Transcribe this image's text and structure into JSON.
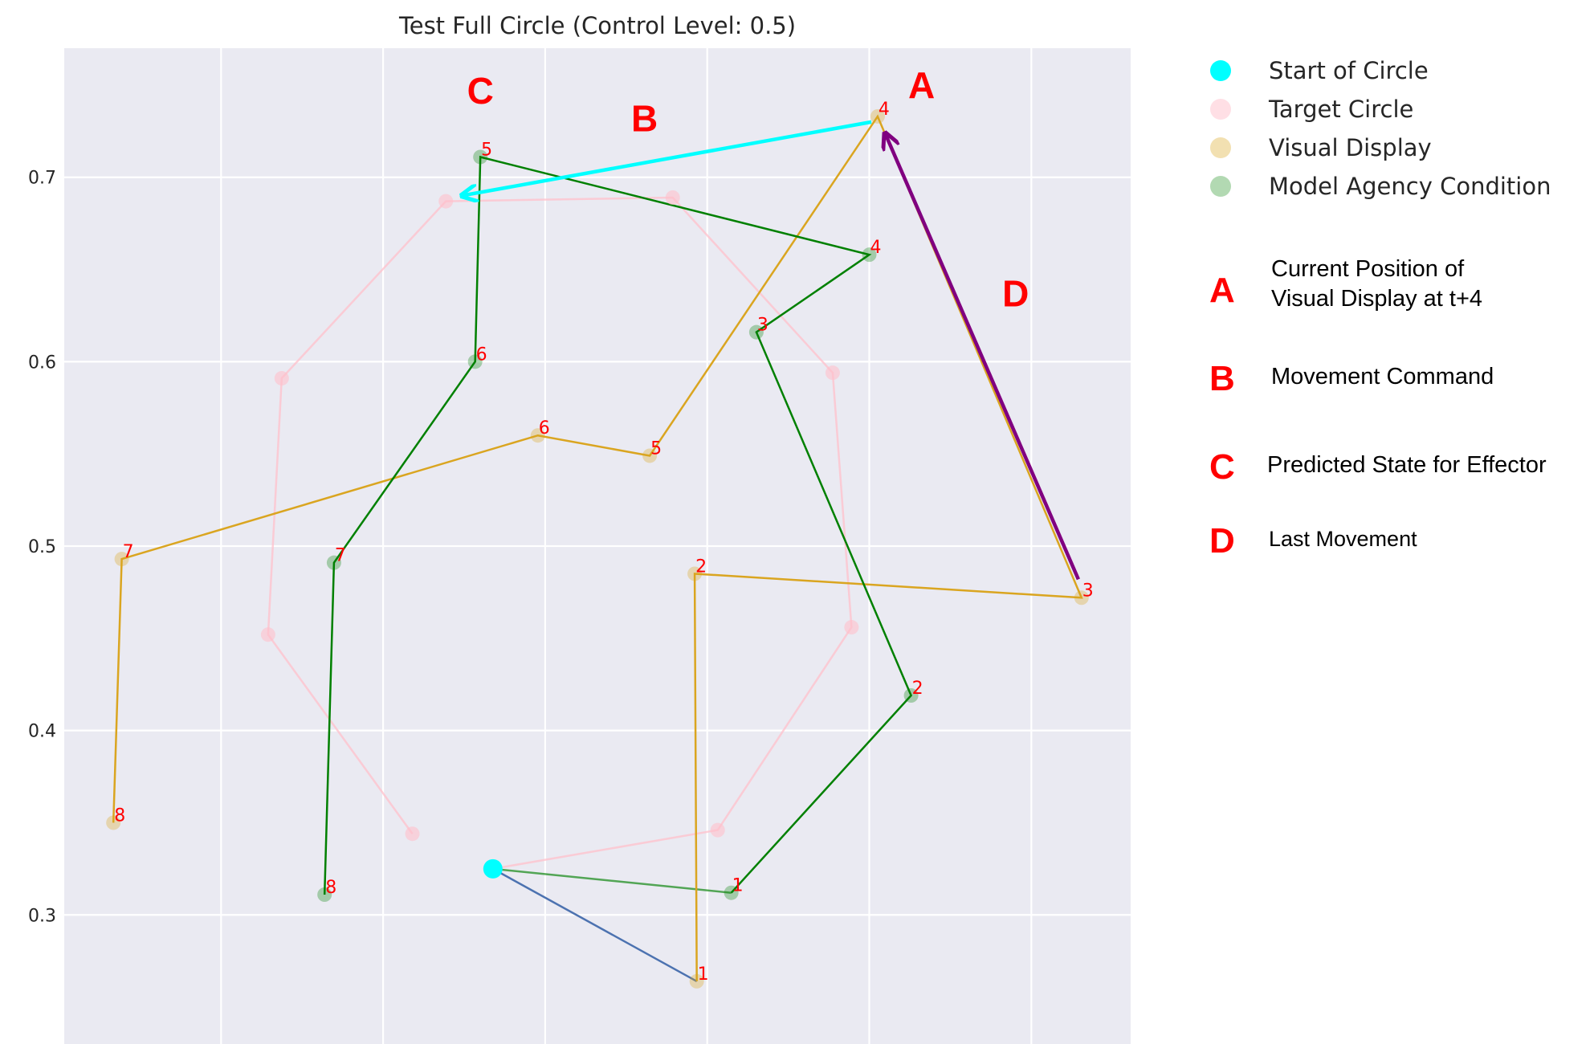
{
  "chart_data": {
    "type": "scatter",
    "title": "Test Full Circle (Control Level: 0.5)",
    "xlabel": "",
    "ylabel": "",
    "xlim": [
      -0.02,
      1.0
    ],
    "ylim": [
      0.23,
      0.77
    ],
    "y_ticks": [
      0.3,
      0.4,
      0.5,
      0.6,
      0.7
    ],
    "y_tick_labels": [
      "0.3",
      "0.4",
      "0.5",
      "0.6",
      "0.7"
    ],
    "x_grid": [
      0.13,
      0.285,
      0.44,
      0.595,
      0.75,
      0.905
    ],
    "grid": true,
    "legend_position": "outside-right",
    "colors": {
      "background": "#eaeaf2",
      "start": "#00ffff",
      "target": "#ffc0cb",
      "visual": "#daa520",
      "model": "#008000",
      "first_move": "#4c72b0",
      "command_arrow": "#00ffff",
      "last_move_arrow": "#800080",
      "point_label": "#ff0000"
    },
    "start_point": {
      "x": 0.39,
      "y": 0.325
    },
    "series": [
      {
        "name": "Target Circle",
        "points": [
          {
            "x": 0.605,
            "y": 0.346
          },
          {
            "x": 0.733,
            "y": 0.456
          },
          {
            "x": 0.715,
            "y": 0.594
          },
          {
            "x": 0.562,
            "y": 0.689
          },
          {
            "x": 0.345,
            "y": 0.687
          },
          {
            "x": 0.188,
            "y": 0.591
          },
          {
            "x": 0.175,
            "y": 0.452
          },
          {
            "x": 0.313,
            "y": 0.344
          }
        ]
      },
      {
        "name": "Visual Display",
        "points": [
          {
            "x": 0.585,
            "y": 0.264,
            "label": "1"
          },
          {
            "x": 0.583,
            "y": 0.485,
            "label": "2"
          },
          {
            "x": 0.953,
            "y": 0.472,
            "label": "3"
          },
          {
            "x": 0.758,
            "y": 0.733,
            "label": "4"
          },
          {
            "x": 0.54,
            "y": 0.549,
            "label": "5"
          },
          {
            "x": 0.433,
            "y": 0.56,
            "label": "6"
          },
          {
            "x": 0.035,
            "y": 0.493,
            "label": "7"
          },
          {
            "x": 0.027,
            "y": 0.35,
            "label": "8"
          }
        ]
      },
      {
        "name": "Model Agency Condition",
        "points": [
          {
            "x": 0.618,
            "y": 0.312,
            "label": "1"
          },
          {
            "x": 0.79,
            "y": 0.419,
            "label": "2"
          },
          {
            "x": 0.642,
            "y": 0.616,
            "label": "3"
          },
          {
            "x": 0.75,
            "y": 0.658,
            "label": "4"
          },
          {
            "x": 0.378,
            "y": 0.711,
            "label": "5"
          },
          {
            "x": 0.373,
            "y": 0.6,
            "label": "6"
          },
          {
            "x": 0.238,
            "y": 0.491,
            "label": "7"
          },
          {
            "x": 0.229,
            "y": 0.311,
            "label": "8"
          }
        ]
      }
    ],
    "arrows": [
      {
        "name": "Movement Command",
        "from": {
          "x": 0.752,
          "y": 0.73
        },
        "to": {
          "x": 0.36,
          "y": 0.69
        }
      },
      {
        "name": "Last Movement",
        "from": {
          "x": 0.95,
          "y": 0.482
        },
        "to": {
          "x": 0.765,
          "y": 0.724
        }
      }
    ],
    "annotations": [
      {
        "letter": "A",
        "x": 0.8,
        "y": 0.743
      },
      {
        "letter": "B",
        "x": 0.535,
        "y": 0.725
      },
      {
        "letter": "C",
        "x": 0.378,
        "y": 0.74
      },
      {
        "letter": "D",
        "x": 0.89,
        "y": 0.63
      }
    ],
    "legend": [
      {
        "label": "Start of Circle",
        "color": "#00ffff",
        "opacity": 1
      },
      {
        "label": "Target Circle",
        "color": "#ffc0cb",
        "opacity": 0.5
      },
      {
        "label": "Visual Display",
        "color": "#daa520",
        "opacity": 0.35
      },
      {
        "label": "Model Agency Condition",
        "color": "#008000",
        "opacity": 0.3
      }
    ],
    "key": [
      {
        "letter": "A",
        "lines": [
          "Current Position of",
          "Visual Display at t+4"
        ]
      },
      {
        "letter": "B",
        "lines": [
          "Movement Command"
        ]
      },
      {
        "letter": "C",
        "lines": [
          "Predicted State for Effector"
        ]
      },
      {
        "letter": "D",
        "lines": [
          "Last Movement"
        ]
      }
    ]
  }
}
